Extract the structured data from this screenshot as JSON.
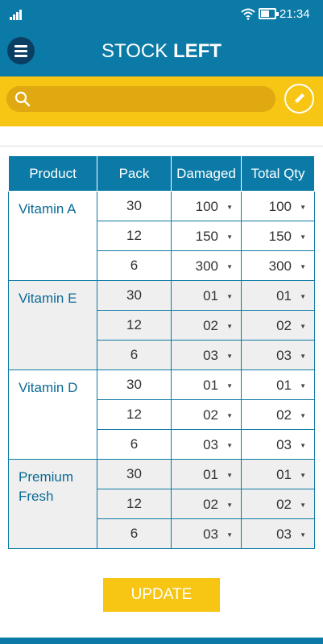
{
  "status_bar": {
    "time": "21:34"
  },
  "header": {
    "title_light": "STOCK ",
    "title_bold": "LEFT",
    "menu_icon": "hamburger-icon"
  },
  "search": {
    "placeholder": "",
    "value": "",
    "icon": "search-icon",
    "edit_icon": "pencil-icon"
  },
  "table": {
    "headers": {
      "product": "Product",
      "pack": "Pack",
      "damaged": "Damaged",
      "total": "Total Qty"
    },
    "groups": [
      {
        "product": "Vitamin A",
        "rows": [
          {
            "pack": "30",
            "damaged": "100",
            "total": "100"
          },
          {
            "pack": "12",
            "damaged": "150",
            "total": "150"
          },
          {
            "pack": "6",
            "damaged": "300",
            "total": "300"
          }
        ]
      },
      {
        "product": "Vitamin E",
        "rows": [
          {
            "pack": "30",
            "damaged": "01",
            "total": "01"
          },
          {
            "pack": "12",
            "damaged": "02",
            "total": "02"
          },
          {
            "pack": "6",
            "damaged": "03",
            "total": "03"
          }
        ]
      },
      {
        "product": "Vitamin D",
        "rows": [
          {
            "pack": "30",
            "damaged": "01",
            "total": "01"
          },
          {
            "pack": "12",
            "damaged": "02",
            "total": "02"
          },
          {
            "pack": "6",
            "damaged": "03",
            "total": "03"
          }
        ]
      },
      {
        "product_line1": "Premium",
        "product_line2": "Fresh",
        "rows": [
          {
            "pack": "30",
            "damaged": "01",
            "total": "01"
          },
          {
            "pack": "12",
            "damaged": "02",
            "total": "02"
          },
          {
            "pack": "6",
            "damaged": "03",
            "total": "03"
          }
        ]
      }
    ]
  },
  "actions": {
    "update_label": "UPDATE"
  },
  "colors": {
    "primary": "#0b7aa6",
    "accent": "#f7c514",
    "dark_blue": "#0a3f63"
  }
}
